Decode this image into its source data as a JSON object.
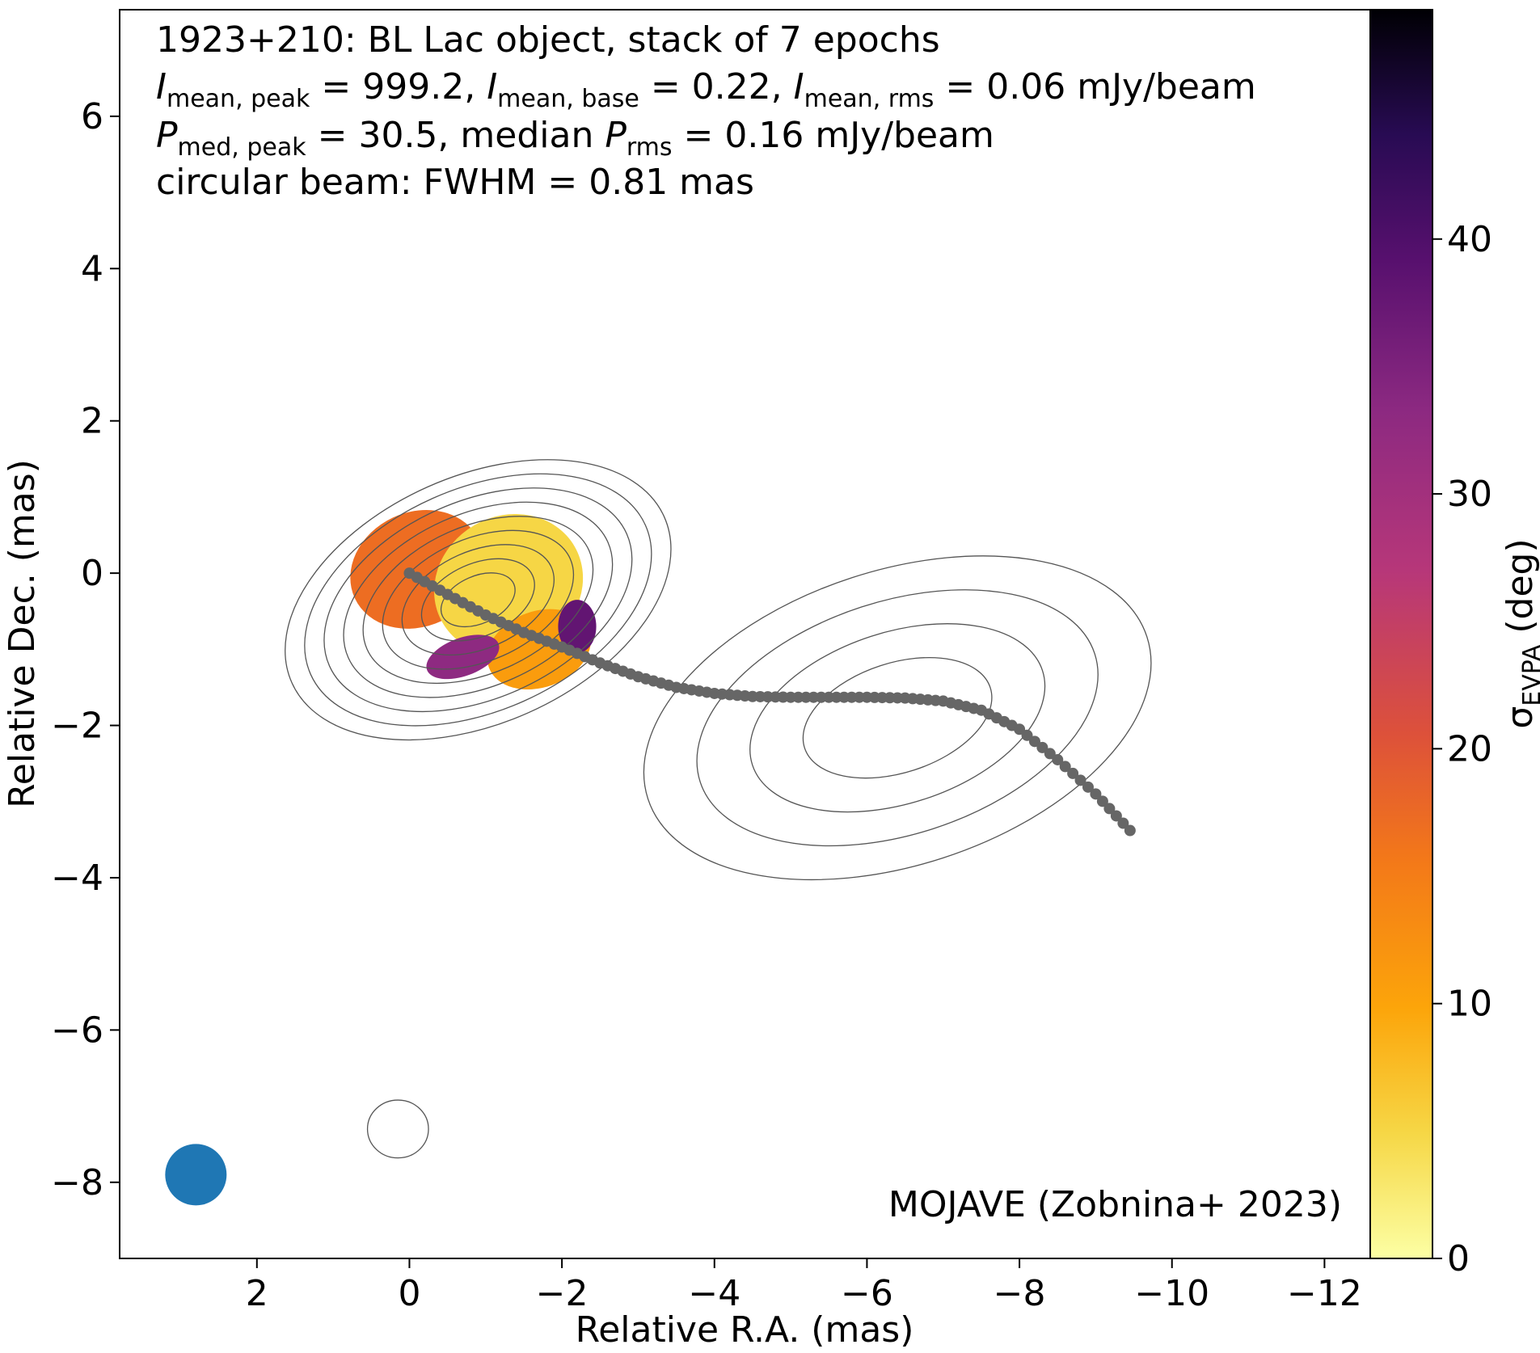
{
  "chart_data": {
    "type": "scatter",
    "title_lines": [
      "1923+210: BL Lac object, stack of 7 epochs",
      "I_mean,peak = 999.2, I_mean,base = 0.22, I_mean,rms = 0.06 mJy/beam",
      "P_med,peak = 30.5, median P_rms = 0.16 mJy/beam",
      "circular beam: FWHM = 0.81 mas"
    ],
    "annotation": "MOJAVE (Zobnina+ 2023)",
    "xlabel": "Relative R.A. (mas)",
    "ylabel": "Relative Dec. (mas)",
    "xlim": [
      3.8,
      -12.6
    ],
    "ylim": [
      -9.0,
      7.4
    ],
    "xticks": [
      2,
      0,
      -2,
      -4,
      -6,
      -8,
      -10,
      -12
    ],
    "yticks": [
      6,
      4,
      2,
      0,
      -2,
      -4,
      -6,
      -8
    ],
    "colorbar": {
      "label": "σ_EVPA (deg)",
      "range": [
        0,
        49
      ],
      "ticks": [
        0,
        10,
        20,
        30,
        40
      ],
      "colormap": "inferno_r"
    },
    "beam": {
      "x": 2.8,
      "y": -7.9,
      "fwhm_mas": 0.81,
      "color": "#1f77b4"
    },
    "ridgeline": {
      "color": "#666666",
      "points": [
        [
          0,
          0
        ],
        [
          -0.5,
          -0.28
        ],
        [
          -1.0,
          -0.55
        ],
        [
          -1.5,
          -0.78
        ],
        [
          -2.0,
          -0.97
        ],
        [
          -2.5,
          -1.18
        ],
        [
          -3.0,
          -1.36
        ],
        [
          -3.5,
          -1.5
        ],
        [
          -4.0,
          -1.58
        ],
        [
          -4.5,
          -1.62
        ],
        [
          -5.0,
          -1.63
        ],
        [
          -5.5,
          -1.63
        ],
        [
          -6.0,
          -1.63
        ],
        [
          -6.5,
          -1.64
        ],
        [
          -7.0,
          -1.68
        ],
        [
          -7.5,
          -1.8
        ],
        [
          -8.0,
          -2.05
        ],
        [
          -8.5,
          -2.45
        ],
        [
          -9.0,
          -2.9
        ],
        [
          -9.45,
          -3.38
        ]
      ]
    },
    "evpa_regions": [
      {
        "cx": -0.1,
        "cy": 0.05,
        "rx": 0.9,
        "ry": 0.75,
        "rot": -25,
        "value": 17
      },
      {
        "cx": -1.3,
        "cy": -0.15,
        "rx": 1.0,
        "ry": 0.9,
        "rot": -30,
        "value": 5
      },
      {
        "cx": -1.7,
        "cy": -1.0,
        "rx": 0.7,
        "ry": 0.5,
        "rot": -20,
        "value": 11
      },
      {
        "cx": -0.7,
        "cy": -1.1,
        "rx": 0.5,
        "ry": 0.25,
        "rot": -20,
        "value": 33
      },
      {
        "cx": -2.2,
        "cy": -0.7,
        "rx": 0.25,
        "ry": 0.35,
        "rot": 0,
        "value": 38
      }
    ]
  }
}
